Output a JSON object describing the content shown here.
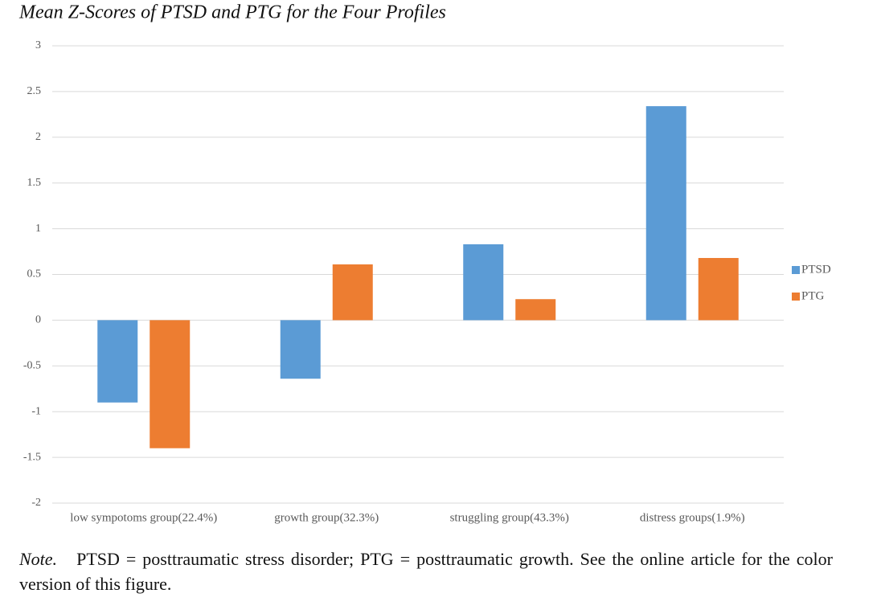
{
  "chart_data": {
    "type": "bar",
    "title": "Mean Z-Scores of PTSD and PTG for the Four Profiles",
    "categories": [
      "low sympotoms group(22.4%)",
      "growth group(32.3%)",
      "struggling group(43.3%)",
      "distress groups(1.9%)"
    ],
    "series": [
      {
        "name": "PTSD",
        "color": "#5b9bd5",
        "values": [
          -0.9,
          -0.64,
          0.83,
          2.34
        ]
      },
      {
        "name": "PTG",
        "color": "#ed7d31",
        "values": [
          -1.4,
          0.61,
          0.23,
          0.68
        ]
      }
    ],
    "ylim": [
      -2,
      3
    ],
    "yticks": [
      -2,
      -1.5,
      -1,
      -0.5,
      0,
      0.5,
      1,
      1.5,
      2,
      2.5,
      3
    ],
    "grid": true,
    "legend": "right",
    "note_label": "Note.",
    "note": "PTSD = posttraumatic stress disorder; PTG = posttraumatic growth. See the online article for the color version of this figure."
  }
}
